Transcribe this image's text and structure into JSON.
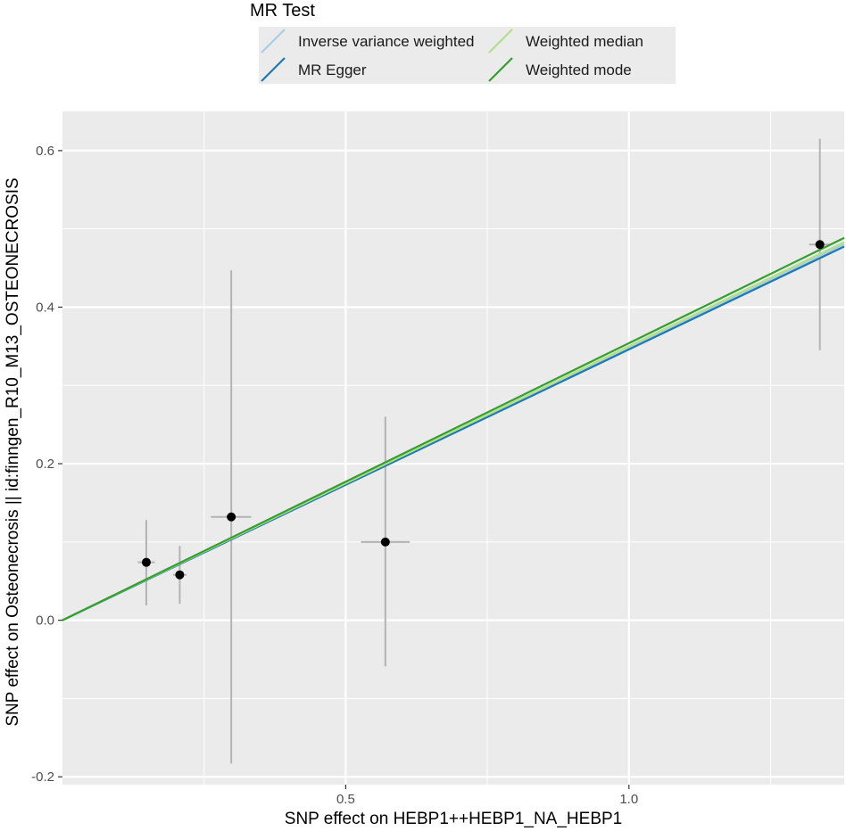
{
  "chart_data": {
    "type": "scatter",
    "xlabel": "SNP effect on HEBP1++HEBP1_NA_HEBP1",
    "ylabel": "SNP effect on Osteonecrosis || id:finngen_R10_M13_OSTEONECROSIS",
    "xlim": [
      0.0,
      1.38
    ],
    "ylim": [
      -0.21,
      0.65
    ],
    "x_ticks": [
      0.5,
      1.0
    ],
    "x_tick_labels": [
      "0.5",
      "1.0"
    ],
    "y_ticks": [
      -0.2,
      0.0,
      0.2,
      0.4,
      0.6
    ],
    "y_tick_labels": [
      "-0.2",
      "0.0",
      "0.2",
      "0.4",
      "0.6"
    ],
    "grid": true,
    "legend": {
      "title": "MR Test",
      "placement": "top",
      "entries": [
        {
          "name": "Inverse variance weighted",
          "color": "#a6cee3"
        },
        {
          "name": "MR Egger",
          "color": "#1f78b4"
        },
        {
          "name": "Weighted median",
          "color": "#b2df8a"
        },
        {
          "name": "Weighted mode",
          "color": "#33a02c"
        }
      ]
    },
    "points": [
      {
        "x": 0.148,
        "y": 0.074,
        "x_low": 0.133,
        "x_high": 0.163,
        "y_low": 0.019,
        "y_high": 0.128
      },
      {
        "x": 0.207,
        "y": 0.058,
        "x_low": 0.195,
        "x_high": 0.219,
        "y_low": 0.021,
        "y_high": 0.095
      },
      {
        "x": 0.298,
        "y": 0.132,
        "x_low": 0.262,
        "x_high": 0.333,
        "y_low": -0.183,
        "y_high": 0.447
      },
      {
        "x": 0.57,
        "y": 0.1,
        "x_low": 0.527,
        "x_high": 0.613,
        "y_low": -0.059,
        "y_high": 0.26
      },
      {
        "x": 1.337,
        "y": 0.48,
        "x_low": 1.318,
        "x_high": 1.357,
        "y_low": 0.345,
        "y_high": 0.615
      }
    ],
    "series": [
      {
        "name": "Inverse variance weighted",
        "color": "#a6cee3",
        "intercept": 0.0,
        "slope": 0.348
      },
      {
        "name": "MR Egger",
        "color": "#1f78b4",
        "intercept": 0.0,
        "slope": 0.346
      },
      {
        "name": "Weighted median",
        "color": "#b2df8a",
        "intercept": 0.0,
        "slope": 0.35
      },
      {
        "name": "Weighted mode",
        "color": "#33a02c",
        "intercept": 0.0,
        "slope": 0.354
      }
    ]
  }
}
